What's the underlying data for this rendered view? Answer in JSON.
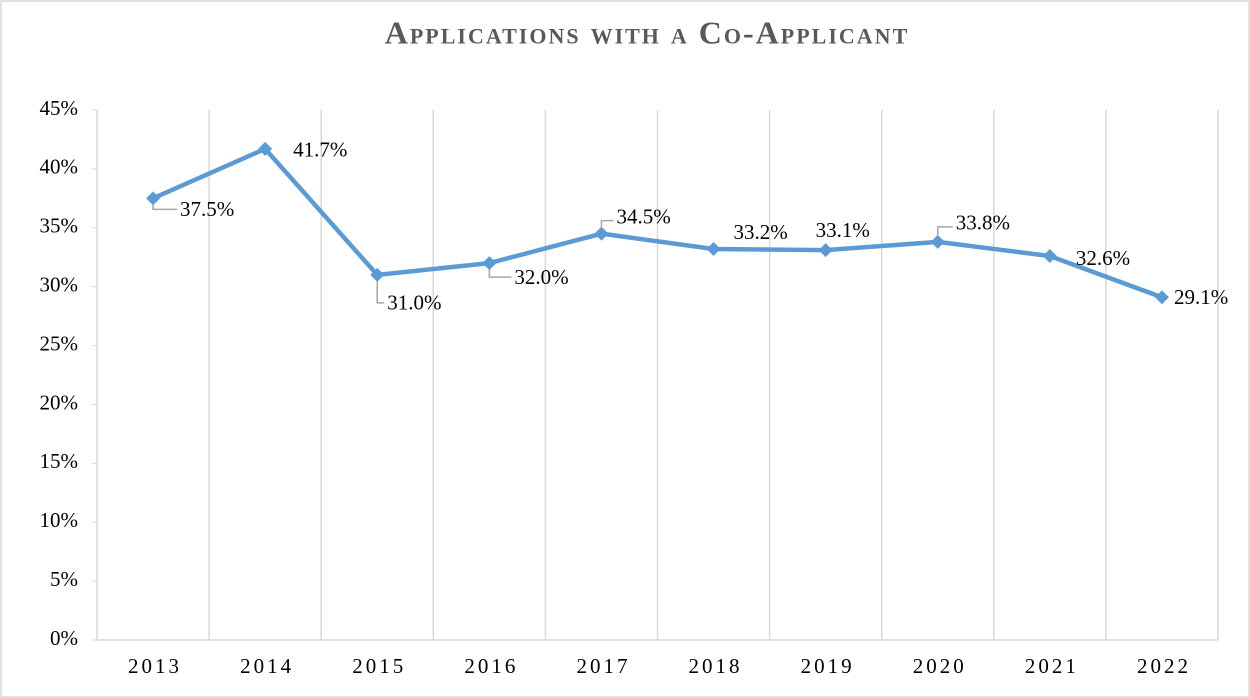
{
  "chart_data": {
    "type": "line",
    "title": "Applications with a Co-Applicant",
    "categories": [
      "2013",
      "2014",
      "2015",
      "2016",
      "2017",
      "2018",
      "2019",
      "2020",
      "2021",
      "2022"
    ],
    "series": [
      {
        "name": "Applications with a Co-Applicant",
        "color": "#5b9bd5",
        "values": [
          37.5,
          41.7,
          31.0,
          32.0,
          34.5,
          33.2,
          33.1,
          33.8,
          32.6,
          29.1
        ],
        "value_labels": [
          "37.5%",
          "41.7%",
          "31.0%",
          "32.0%",
          "34.5%",
          "33.2%",
          "33.1%",
          "33.8%",
          "32.6%",
          "29.1%"
        ]
      }
    ],
    "ylim": [
      0,
      45
    ],
    "yticks": [
      {
        "value": 0,
        "label": "0%"
      },
      {
        "value": 5,
        "label": "5%"
      },
      {
        "value": 10,
        "label": "10%"
      },
      {
        "value": 15,
        "label": "15%"
      },
      {
        "value": 20,
        "label": "20%"
      },
      {
        "value": 25,
        "label": "25%"
      },
      {
        "value": 30,
        "label": "30%"
      },
      {
        "value": 35,
        "label": "35%"
      },
      {
        "value": 40,
        "label": "40%"
      },
      {
        "value": 45,
        "label": "45%"
      }
    ],
    "grid": "x"
  }
}
